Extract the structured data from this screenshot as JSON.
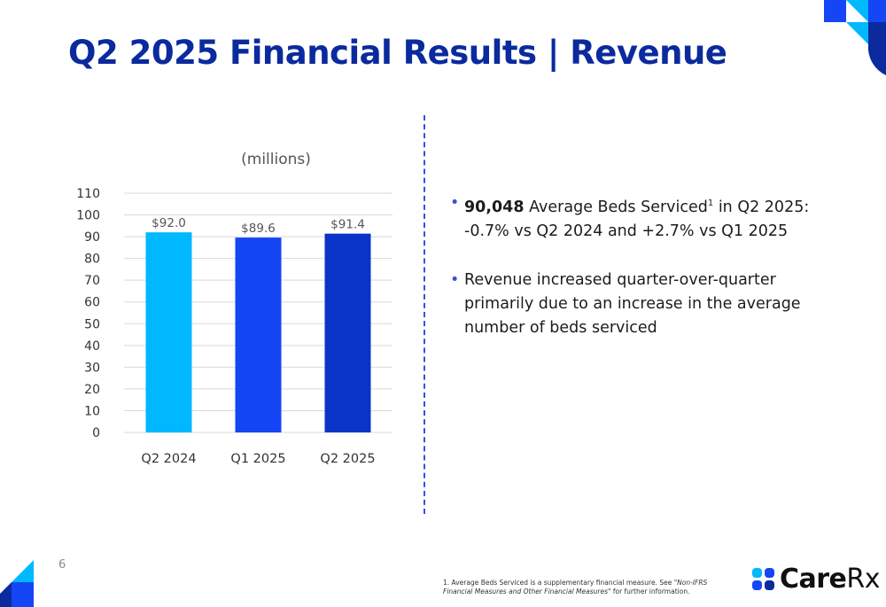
{
  "slide": {
    "title": "Q2 2025 Financial Results | Revenue",
    "page_number": "6"
  },
  "bullets": [
    {
      "bold": "90,048",
      "text_a": " Average Beds Serviced",
      "sup": "1",
      "text_b": " in Q2 2025: -0.7% vs Q2 2024 and +2.7% vs Q1 2025"
    },
    {
      "text": "Revenue increased quarter-over-quarter primarily due to an increase in the average number of beds serviced"
    }
  ],
  "footnote": {
    "lead": "1. Average Beds Serviced is a supplementary financial measure. See ",
    "italic": "\"Non-IFRS Financial Measures and Other Financial Measures\"",
    "trail": " for further information."
  },
  "logo": {
    "bold": "Care",
    "regular": "Rx"
  },
  "colors": {
    "title": "#0a2a9e",
    "accent": "#2f55e0",
    "bar_q2_2024": "#00b8ff",
    "bar_q1_2025": "#1446f5",
    "bar_q2_2025": "#0a34c8"
  },
  "chart_data": {
    "type": "bar",
    "title": "(millions)",
    "categories": [
      "Q2 2024",
      "Q1 2025",
      "Q2 2025"
    ],
    "values": [
      92.0,
      89.6,
      91.4
    ],
    "data_labels": [
      "$92.0",
      "$89.6",
      "$91.4"
    ],
    "yticks": [
      "0",
      "10",
      "20",
      "30",
      "40",
      "50",
      "60",
      "70",
      "80",
      "90",
      "100",
      "110"
    ],
    "ylim": [
      0,
      110
    ],
    "grid": true,
    "xlabel": "",
    "ylabel": ""
  }
}
